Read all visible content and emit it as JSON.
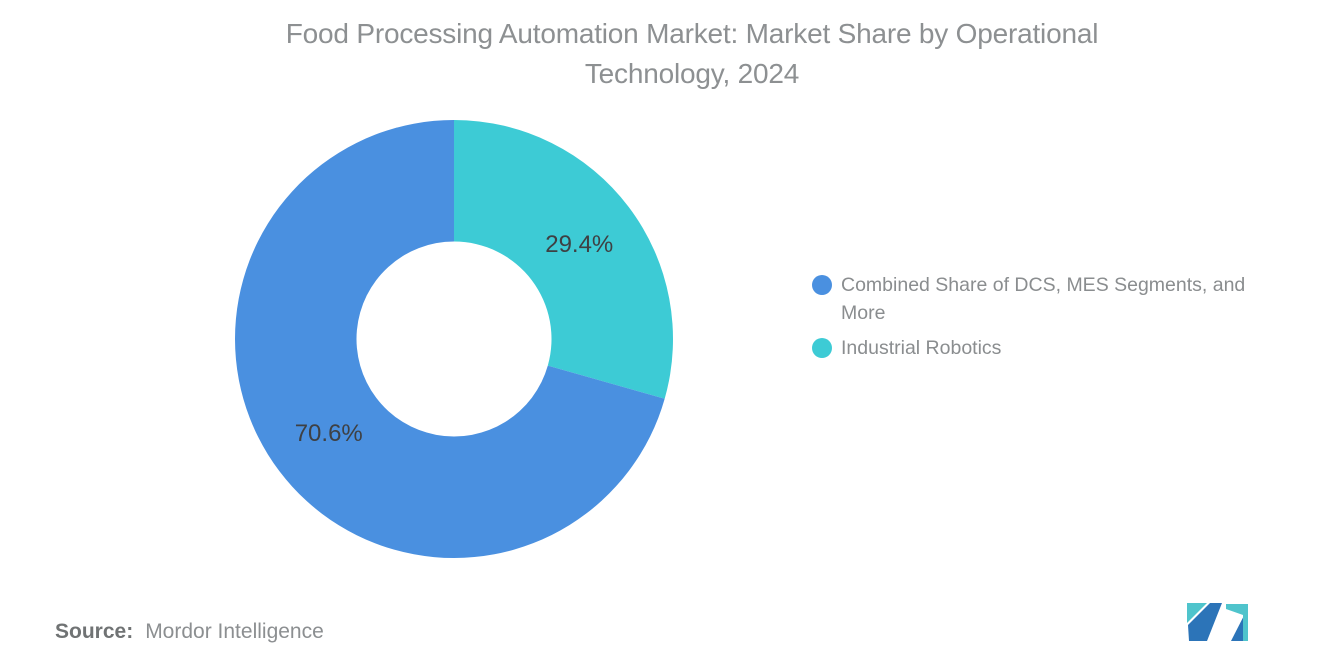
{
  "header": {
    "title_line1": "Food Processing Automation Market: Market Share by Operational",
    "title_line2": "Technology, 2024"
  },
  "chart_data": {
    "type": "pie",
    "subtype": "donut",
    "title": "Food Processing Automation Market: Market Share by Operational Technology, 2024",
    "series": [
      {
        "label": "Combined Share of DCS, MES Segments, and More",
        "value": 70.6,
        "display": "70.6%",
        "color": "#4A90E0"
      },
      {
        "label": "Industrial Robotics",
        "value": 29.4,
        "display": "29.4%",
        "color": "#3DCBD5"
      }
    ],
    "legend_position": "right",
    "value_label_color": "#3E4043",
    "notes": "Industrial Robotics slice starts at 12 o'clock and sweeps clockwise 29.4%; remainder is the blue slice."
  },
  "legend": {
    "items": [
      {
        "lines": [
          "Combined Share of DCS, MES Segments, and",
          "More"
        ],
        "color": "#4A90E0"
      },
      {
        "lines": [
          "Industrial Robotics"
        ],
        "color": "#3DCBD5"
      }
    ]
  },
  "footer": {
    "source_label": "Source:",
    "source_value": "Mordor Intelligence"
  },
  "logo": {
    "name": "Mordor Intelligence logo mark",
    "colors": {
      "blue": "#2C74B8",
      "teal": "#4FC4CC"
    }
  }
}
